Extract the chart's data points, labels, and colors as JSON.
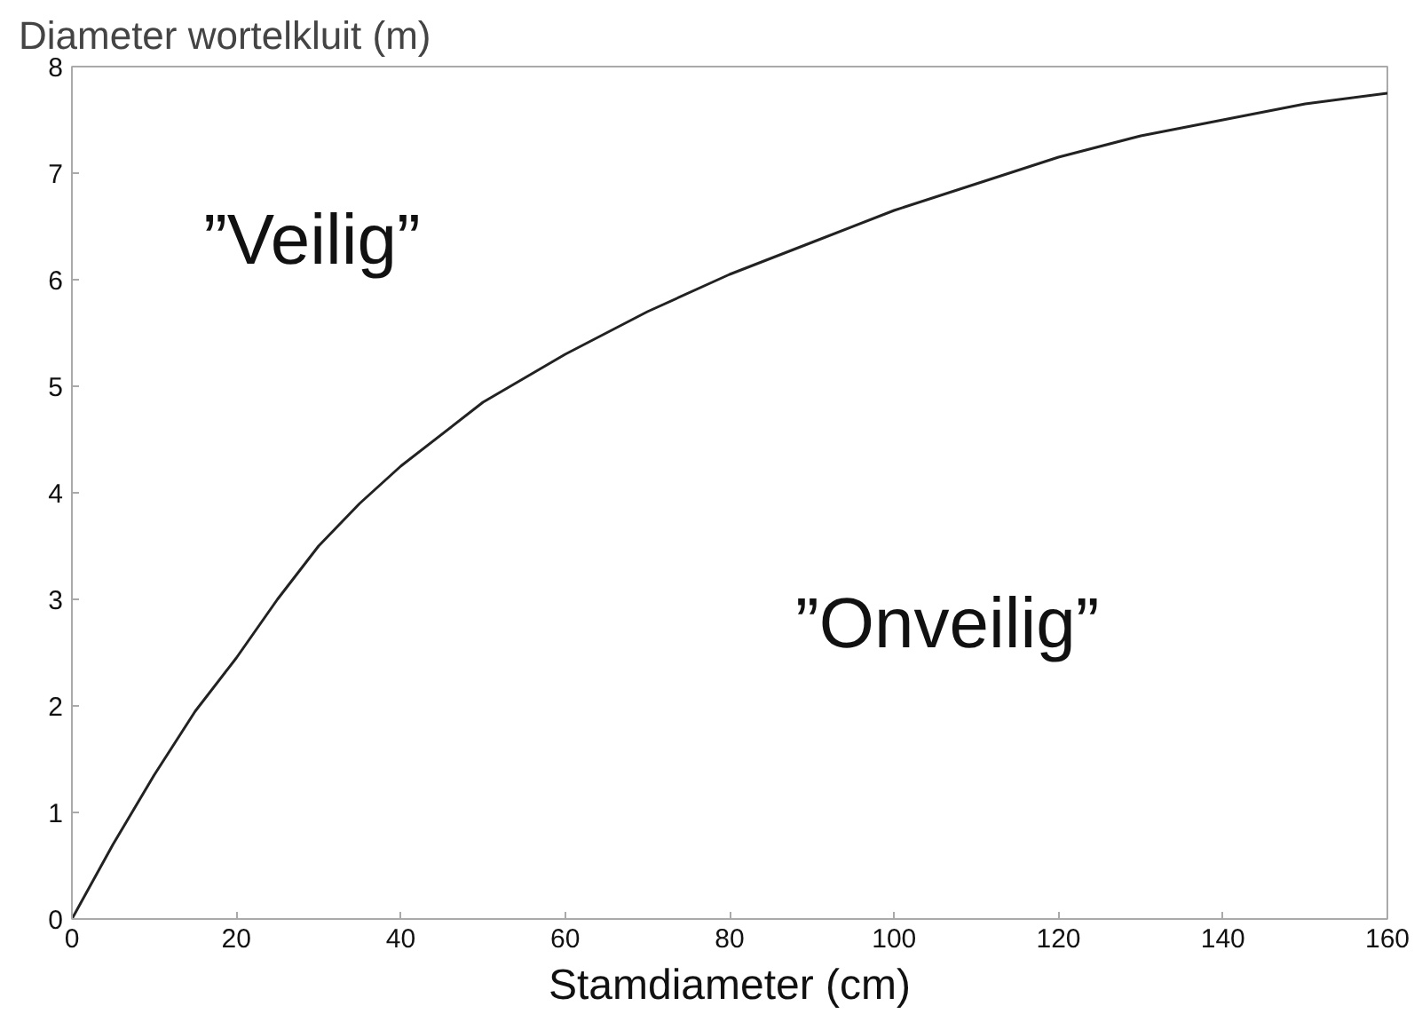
{
  "chart_data": {
    "type": "line",
    "ylabel": "Diameter wortelkluit (m)",
    "xlabel": "Stamdiameter (cm)",
    "x": [
      0,
      5,
      10,
      15,
      20,
      25,
      30,
      35,
      40,
      50,
      60,
      70,
      80,
      90,
      100,
      110,
      120,
      130,
      140,
      150,
      160
    ],
    "series": [
      {
        "color": "#222222",
        "values": [
          0,
          0.7,
          1.35,
          1.95,
          2.45,
          3.0,
          3.5,
          3.9,
          4.25,
          4.85,
          5.3,
          5.7,
          6.05,
          6.35,
          6.65,
          6.9,
          7.15,
          7.35,
          7.5,
          7.65,
          7.75
        ]
      }
    ],
    "annotations": [
      "”Veilig”",
      "”Onveilig”"
    ],
    "xlim": [
      0,
      160
    ],
    "ylim": [
      0,
      8
    ],
    "xticks": [
      0,
      20,
      40,
      60,
      80,
      100,
      120,
      140,
      160
    ],
    "yticks": [
      0,
      1,
      2,
      3,
      4,
      5,
      6,
      7,
      8
    ],
    "grid": false,
    "marker": "none",
    "line_style": "solid"
  }
}
